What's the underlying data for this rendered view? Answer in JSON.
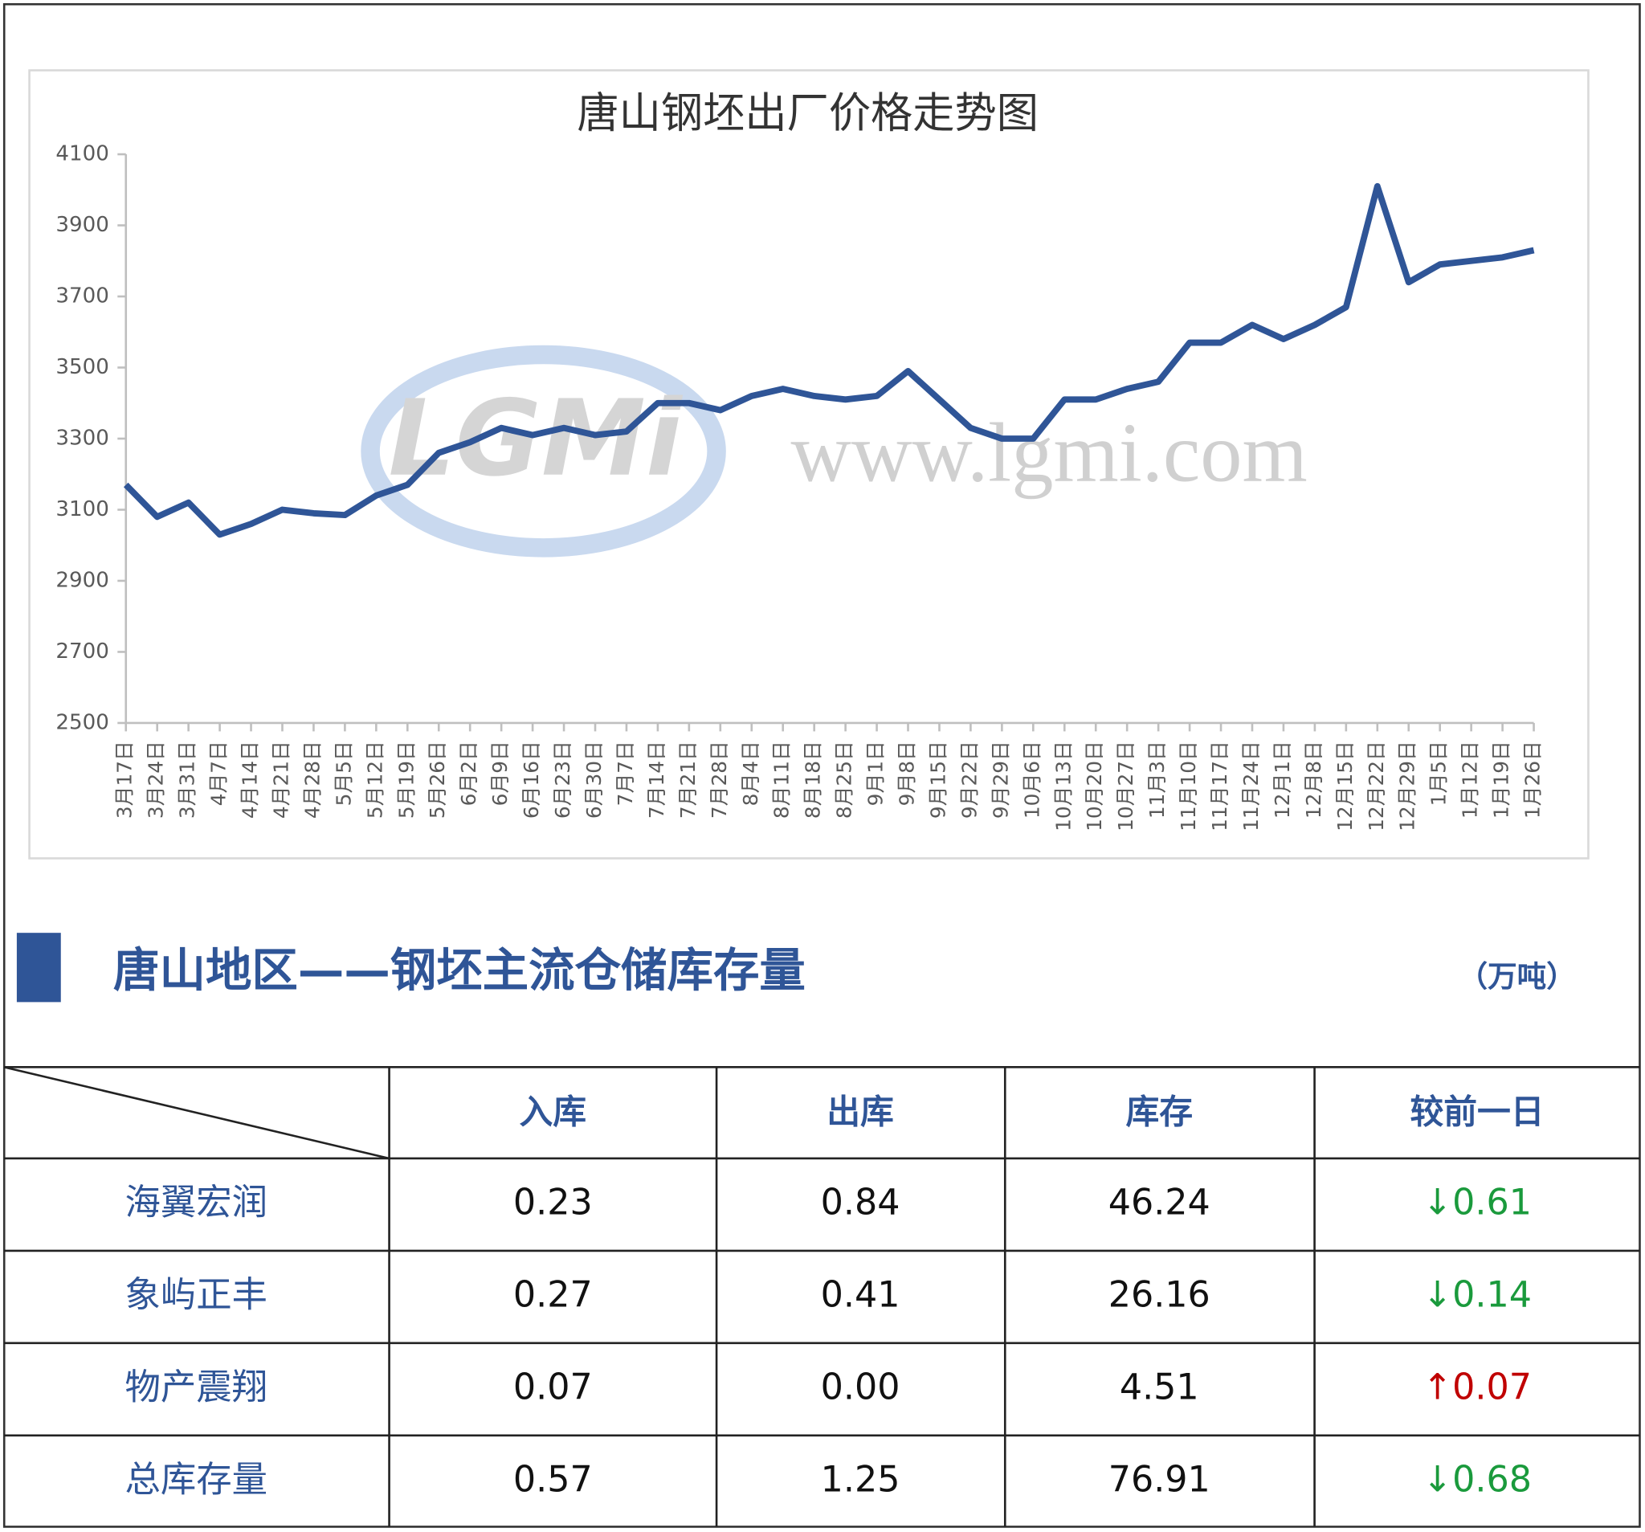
{
  "chart_data": {
    "type": "line",
    "title": "唐山钢坯出厂价格走势图",
    "watermark": "www.lgmi.com",
    "logo": "LGMi",
    "categories": [
      "3月17日",
      "3月24日",
      "3月31日",
      "4月7日",
      "4月14日",
      "4月21日",
      "4月28日",
      "5月5日",
      "5月12日",
      "5月19日",
      "5月26日",
      "6月2日",
      "6月9日",
      "6月16日",
      "6月23日",
      "6月30日",
      "7月7日",
      "7月14日",
      "7月21日",
      "7月28日",
      "8月4日",
      "8月11日",
      "8月18日",
      "8月25日",
      "9月1日",
      "9月8日",
      "9月15日",
      "9月22日",
      "9月29日",
      "10月6日",
      "10月13日",
      "10月20日",
      "10月27日",
      "11月3日",
      "11月10日",
      "11月17日",
      "11月24日",
      "12月1日",
      "12月8日",
      "12月15日",
      "12月22日",
      "12月29日",
      "1月5日",
      "1月12日",
      "1月19日",
      "1月26日"
    ],
    "values": [
      3170,
      3080,
      3120,
      3030,
      3060,
      3100,
      3090,
      3085,
      3140,
      3170,
      3260,
      3290,
      3330,
      3310,
      3330,
      3310,
      3320,
      3400,
      3400,
      3380,
      3420,
      3440,
      3420,
      3410,
      3420,
      3490,
      3410,
      3330,
      3300,
      3300,
      3410,
      3410,
      3440,
      3460,
      3570,
      3570,
      3620,
      3580,
      3620,
      3670,
      4010,
      3740,
      3790,
      3800,
      3810,
      3830
    ],
    "color": "#2f5597",
    "ylim": [
      2500,
      4100
    ],
    "yticks": [
      2500,
      2700,
      2900,
      3100,
      3300,
      3500,
      3700,
      3900,
      4100
    ]
  },
  "section": {
    "title": "唐山地区——钢坯主流仓储库存量",
    "unit": "（万吨）"
  },
  "table": {
    "columns": [
      "入库",
      "出库",
      "库存",
      "较前一日"
    ],
    "rows": [
      {
        "name": "海翼宏润",
        "cells": [
          "0.23",
          "0.84",
          "46.24",
          "↓0.61"
        ]
      },
      {
        "name": "象屿正丰",
        "cells": [
          "0.27",
          "0.41",
          "26.16",
          "↓0.14"
        ]
      },
      {
        "name": "物产震翔",
        "cells": [
          "0.07",
          "0.00",
          "4.51",
          "↑0.07"
        ]
      },
      {
        "name": "总库存量",
        "cells": [
          "0.57",
          "1.25",
          "76.91",
          "↓0.68"
        ]
      }
    ],
    "up_color": "#c00000",
    "down_color": "#1a9a3c"
  }
}
